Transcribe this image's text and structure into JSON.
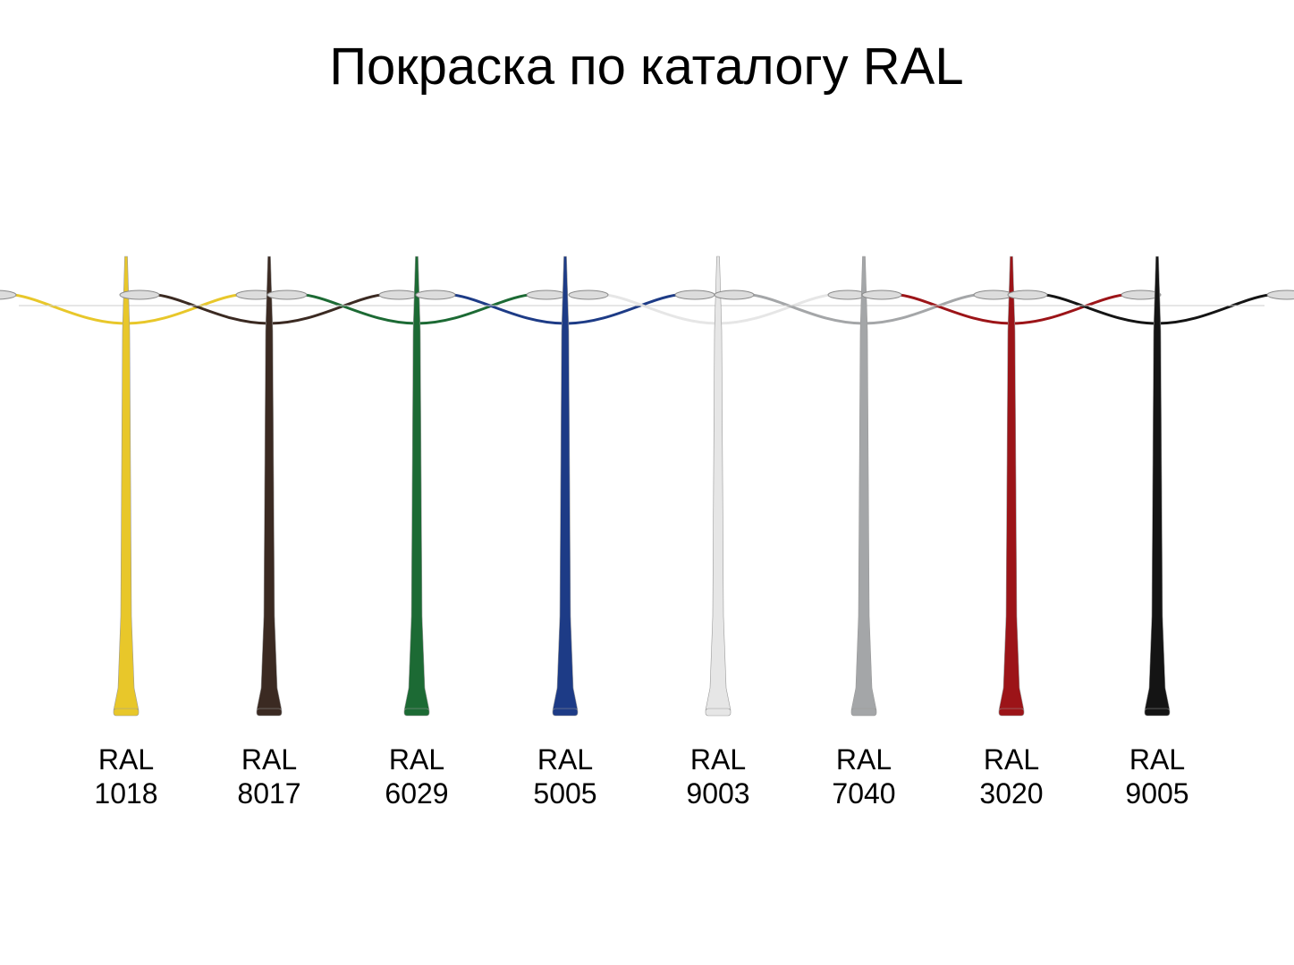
{
  "header": {
    "title": "Покраска по каталогу RAL"
  },
  "items": [
    {
      "line1": "RAL",
      "line2": "1018",
      "color": "#e8c72a"
    },
    {
      "line1": "RAL",
      "line2": "8017",
      "color": "#3b2a22"
    },
    {
      "line1": "RAL",
      "line2": "6029",
      "color": "#1c6a34"
    },
    {
      "line1": "RAL",
      "line2": "5005",
      "color": "#1d3b86"
    },
    {
      "line1": "RAL",
      "line2": "9003",
      "color": "#e6e6e6"
    },
    {
      "line1": "RAL",
      "line2": "7040",
      "color": "#a4a6a8"
    },
    {
      "line1": "RAL",
      "line2": "3020",
      "color": "#9c1418"
    },
    {
      "line1": "RAL",
      "line2": "9005",
      "color": "#141414"
    }
  ]
}
